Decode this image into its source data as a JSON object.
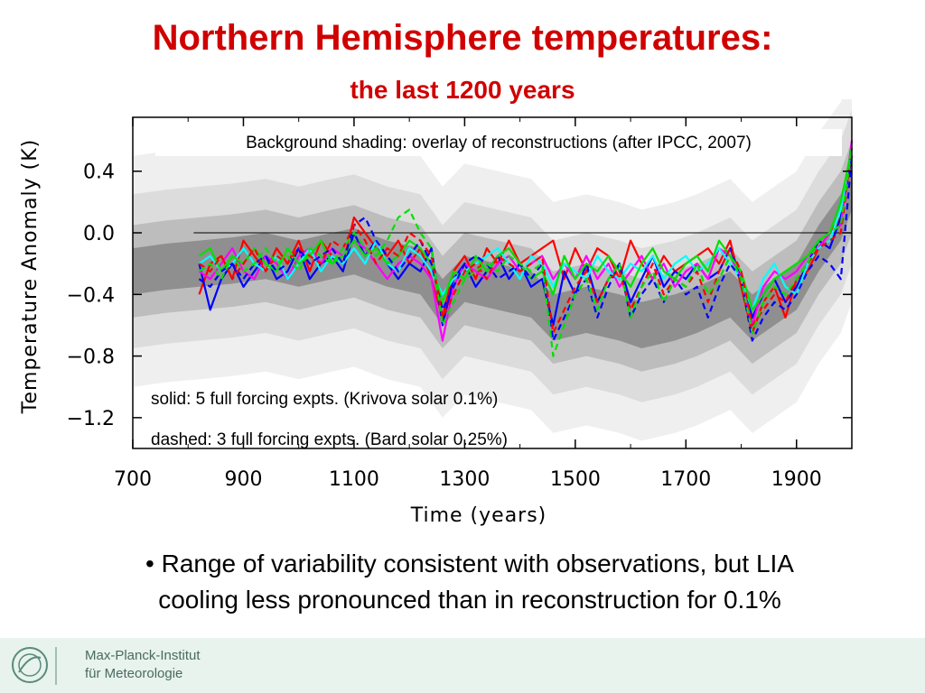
{
  "slide": {
    "title": "Northern Hemisphere temperatures:",
    "subtitle": "the last 1200 years",
    "bullet_line1": "• Range of variability consistent with observations, but LIA",
    "bullet_line2": "cooling less pronounced than in reconstruction for 0.1%"
  },
  "footer": {
    "logo_line1": "Max-Planck-Institut",
    "logo_line2": "für Meteorologie"
  },
  "chart_data": {
    "type": "line",
    "xlabel": "Time (years)",
    "ylabel": "Temperature Anomaly (K)",
    "xlim": [
      700,
      2000
    ],
    "ylim": [
      -1.4,
      0.75
    ],
    "xticks": [
      700,
      900,
      1100,
      1300,
      1500,
      1700,
      1900
    ],
    "yticks": [
      0.4,
      0.0,
      -0.4,
      -0.8,
      -1.2
    ],
    "ytick_labels": [
      "0.4",
      "0.0",
      "−0.4",
      "−0.8",
      "−1.2"
    ],
    "zero_line": 0.0,
    "annotations": {
      "shading": "Background shading: overlay of reconstructions (after IPCC, 2007)",
      "solid": "solid: 5 full forcing expts. (Krivova solar 0.1%)",
      "dashed": "dashed: 3 full forcing expts. (Bard solar 0.25%)"
    },
    "shading": {
      "x": [
        700,
        760,
        820,
        880,
        940,
        1000,
        1060,
        1100,
        1160,
        1220,
        1260,
        1300,
        1360,
        1420,
        1460,
        1520,
        1580,
        1620,
        1680,
        1720,
        1780,
        1820,
        1860,
        1900,
        1940,
        1980,
        2000
      ],
      "center": [
        -0.25,
        -0.22,
        -0.2,
        -0.18,
        -0.15,
        -0.2,
        -0.15,
        -0.12,
        -0.2,
        -0.25,
        -0.45,
        -0.3,
        -0.35,
        -0.4,
        -0.55,
        -0.5,
        -0.55,
        -0.6,
        -0.55,
        -0.5,
        -0.4,
        -0.55,
        -0.45,
        -0.35,
        -0.1,
        0.1,
        0.3
      ],
      "bands": [
        {
          "half_width": 0.75,
          "color": "#efefef"
        },
        {
          "half_width": 0.5,
          "color": "#dcdcdc"
        },
        {
          "half_width": 0.3,
          "color": "#bdbdbd"
        },
        {
          "half_width": 0.15,
          "color": "#8f8f8f"
        }
      ]
    },
    "x": [
      820,
      840,
      860,
      880,
      900,
      920,
      940,
      960,
      980,
      1000,
      1020,
      1040,
      1060,
      1080,
      1100,
      1120,
      1140,
      1160,
      1180,
      1200,
      1220,
      1240,
      1260,
      1280,
      1300,
      1320,
      1340,
      1360,
      1380,
      1400,
      1420,
      1440,
      1460,
      1480,
      1500,
      1520,
      1540,
      1560,
      1580,
      1600,
      1620,
      1640,
      1660,
      1680,
      1700,
      1720,
      1740,
      1760,
      1780,
      1800,
      1820,
      1840,
      1860,
      1880,
      1900,
      1920,
      1940,
      1960,
      1980,
      2000
    ],
    "series": [
      {
        "color": "#ff0000",
        "style": "solid",
        "values": [
          -0.4,
          -0.2,
          -0.15,
          -0.3,
          -0.05,
          -0.15,
          -0.25,
          -0.1,
          -0.2,
          -0.05,
          -0.25,
          -0.05,
          -0.15,
          -0.2,
          0.1,
          0.0,
          -0.1,
          -0.15,
          -0.05,
          -0.2,
          -0.1,
          -0.3,
          -0.55,
          -0.25,
          -0.15,
          -0.3,
          -0.1,
          -0.2,
          -0.05,
          -0.2,
          -0.15,
          -0.1,
          -0.05,
          -0.3,
          -0.1,
          -0.25,
          -0.1,
          -0.15,
          -0.3,
          -0.05,
          -0.2,
          -0.3,
          -0.15,
          -0.25,
          -0.2,
          -0.15,
          -0.1,
          -0.2,
          -0.05,
          -0.35,
          -0.65,
          -0.45,
          -0.35,
          -0.55,
          -0.3,
          -0.25,
          -0.1,
          0.0,
          0.1,
          0.5
        ]
      },
      {
        "color": "#0000ff",
        "style": "solid",
        "values": [
          -0.2,
          -0.5,
          -0.3,
          -0.2,
          -0.35,
          -0.25,
          -0.15,
          -0.3,
          -0.25,
          -0.1,
          -0.3,
          -0.2,
          -0.15,
          -0.25,
          0.0,
          -0.15,
          -0.05,
          -0.2,
          -0.3,
          -0.2,
          -0.25,
          -0.1,
          -0.6,
          -0.3,
          -0.2,
          -0.35,
          -0.25,
          -0.15,
          -0.3,
          -0.2,
          -0.35,
          -0.3,
          -0.6,
          -0.25,
          -0.4,
          -0.2,
          -0.45,
          -0.3,
          -0.2,
          -0.45,
          -0.3,
          -0.15,
          -0.35,
          -0.25,
          -0.3,
          -0.2,
          -0.3,
          -0.25,
          -0.1,
          -0.3,
          -0.55,
          -0.4,
          -0.3,
          -0.45,
          -0.35,
          -0.2,
          -0.05,
          -0.1,
          0.1,
          0.5
        ]
      },
      {
        "color": "#ff00ff",
        "style": "solid",
        "values": [
          -0.25,
          -0.3,
          -0.2,
          -0.1,
          -0.25,
          -0.3,
          -0.15,
          -0.2,
          -0.3,
          -0.15,
          -0.1,
          -0.2,
          -0.1,
          -0.15,
          -0.05,
          -0.1,
          -0.2,
          -0.3,
          -0.2,
          -0.15,
          -0.2,
          -0.3,
          -0.7,
          -0.35,
          -0.2,
          -0.25,
          -0.3,
          -0.2,
          -0.15,
          -0.25,
          -0.2,
          -0.15,
          -0.3,
          -0.2,
          -0.3,
          -0.15,
          -0.3,
          -0.2,
          -0.35,
          -0.25,
          -0.15,
          -0.3,
          -0.2,
          -0.35,
          -0.25,
          -0.2,
          -0.3,
          -0.1,
          -0.15,
          -0.3,
          -0.6,
          -0.35,
          -0.25,
          -0.3,
          -0.25,
          -0.15,
          -0.1,
          0.0,
          0.05,
          0.6
        ]
      },
      {
        "color": "#00ffff",
        "style": "solid",
        "values": [
          -0.2,
          -0.15,
          -0.25,
          -0.2,
          -0.1,
          -0.2,
          -0.25,
          -0.15,
          -0.3,
          -0.2,
          -0.1,
          -0.25,
          -0.15,
          -0.2,
          -0.1,
          -0.2,
          -0.05,
          -0.2,
          -0.25,
          -0.1,
          -0.15,
          -0.25,
          -0.4,
          -0.3,
          -0.25,
          -0.2,
          -0.15,
          -0.1,
          -0.2,
          -0.3,
          -0.15,
          -0.2,
          -0.35,
          -0.2,
          -0.25,
          -0.3,
          -0.15,
          -0.25,
          -0.3,
          -0.2,
          -0.25,
          -0.15,
          -0.3,
          -0.2,
          -0.15,
          -0.25,
          -0.2,
          -0.1,
          -0.2,
          -0.3,
          -0.5,
          -0.3,
          -0.2,
          -0.35,
          -0.4,
          -0.2,
          -0.1,
          -0.05,
          0.15,
          0.55
        ]
      },
      {
        "color": "#00e000",
        "style": "solid",
        "values": [
          -0.15,
          -0.1,
          -0.25,
          -0.15,
          -0.2,
          -0.1,
          -0.2,
          -0.25,
          -0.1,
          -0.2,
          -0.15,
          -0.05,
          -0.2,
          -0.15,
          -0.05,
          -0.15,
          -0.1,
          -0.2,
          -0.15,
          -0.05,
          -0.1,
          -0.2,
          -0.45,
          -0.25,
          -0.3,
          -0.15,
          -0.25,
          -0.15,
          -0.1,
          -0.2,
          -0.3,
          -0.25,
          -0.4,
          -0.15,
          -0.3,
          -0.2,
          -0.25,
          -0.15,
          -0.25,
          -0.35,
          -0.2,
          -0.1,
          -0.25,
          -0.3,
          -0.2,
          -0.15,
          -0.25,
          -0.05,
          -0.15,
          -0.25,
          -0.5,
          -0.4,
          -0.3,
          -0.25,
          -0.2,
          -0.15,
          -0.05,
          0.0,
          0.2,
          0.55
        ]
      },
      {
        "color": "#0000ff",
        "style": "dashed",
        "values": [
          -0.3,
          -0.35,
          -0.25,
          -0.2,
          -0.3,
          -0.2,
          -0.15,
          -0.25,
          -0.2,
          -0.1,
          -0.2,
          -0.15,
          -0.1,
          -0.2,
          0.05,
          0.1,
          -0.05,
          -0.15,
          -0.25,
          -0.15,
          -0.05,
          -0.2,
          -0.5,
          -0.35,
          -0.2,
          -0.15,
          -0.2,
          -0.3,
          -0.25,
          -0.2,
          -0.3,
          -0.2,
          -0.7,
          -0.55,
          -0.4,
          -0.3,
          -0.55,
          -0.35,
          -0.2,
          -0.55,
          -0.4,
          -0.3,
          -0.45,
          -0.3,
          -0.4,
          -0.35,
          -0.55,
          -0.35,
          -0.2,
          -0.3,
          -0.7,
          -0.55,
          -0.45,
          -0.5,
          -0.4,
          -0.25,
          -0.15,
          -0.2,
          -0.3,
          0.5
        ]
      },
      {
        "color": "#ff0000",
        "style": "dashed",
        "values": [
          -0.2,
          -0.25,
          -0.15,
          -0.3,
          -0.2,
          -0.1,
          -0.25,
          -0.15,
          -0.2,
          -0.1,
          -0.15,
          -0.2,
          -0.05,
          -0.1,
          0.05,
          -0.05,
          -0.2,
          -0.1,
          -0.15,
          0.0,
          -0.05,
          -0.15,
          -0.55,
          -0.4,
          -0.25,
          -0.2,
          -0.3,
          -0.15,
          -0.2,
          -0.25,
          -0.2,
          -0.15,
          -0.65,
          -0.5,
          -0.35,
          -0.25,
          -0.45,
          -0.3,
          -0.25,
          -0.5,
          -0.35,
          -0.2,
          -0.4,
          -0.3,
          -0.35,
          -0.25,
          -0.45,
          -0.25,
          -0.1,
          -0.25,
          -0.6,
          -0.5,
          -0.4,
          -0.45,
          -0.3,
          -0.2,
          -0.1,
          -0.05,
          0.0,
          0.55
        ]
      },
      {
        "color": "#00e000",
        "style": "dashed",
        "values": [
          -0.25,
          -0.2,
          -0.3,
          -0.15,
          -0.25,
          -0.2,
          -0.1,
          -0.2,
          -0.15,
          -0.25,
          -0.1,
          -0.15,
          -0.2,
          -0.1,
          0.0,
          -0.1,
          -0.15,
          -0.05,
          0.1,
          0.15,
          0.0,
          -0.1,
          -0.6,
          -0.45,
          -0.3,
          -0.25,
          -0.2,
          -0.25,
          -0.15,
          -0.2,
          -0.25,
          -0.2,
          -0.8,
          -0.6,
          -0.4,
          -0.3,
          -0.5,
          -0.3,
          -0.2,
          -0.55,
          -0.35,
          -0.25,
          -0.45,
          -0.3,
          -0.35,
          -0.2,
          -0.4,
          -0.3,
          -0.15,
          -0.3,
          -0.65,
          -0.45,
          -0.35,
          -0.4,
          -0.3,
          -0.2,
          -0.05,
          0.0,
          0.05,
          0.55
        ]
      }
    ]
  }
}
